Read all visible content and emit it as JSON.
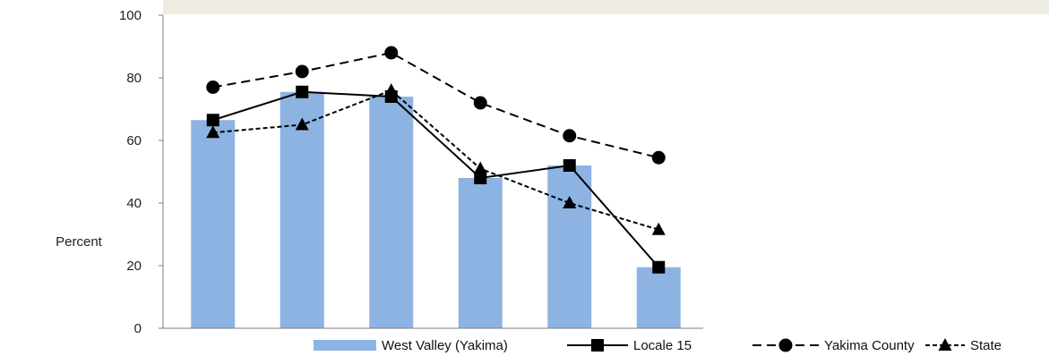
{
  "chart_data": {
    "type": "bar",
    "ylabel": "Percent",
    "ylim": [
      0,
      100
    ],
    "yticks": [
      0,
      20,
      40,
      60,
      80,
      100
    ],
    "grid": false,
    "legend_position": "bottom-right",
    "categories": [
      "",
      "",
      "",
      "",
      "",
      ""
    ],
    "series": [
      {
        "name": "West Valley (Yakima)",
        "kind": "bar",
        "color": "#8db3e2",
        "values": [
          66.5,
          75.5,
          74,
          48,
          52,
          19.5
        ]
      },
      {
        "name": "Locale 15",
        "kind": "line",
        "style": "solid",
        "marker": "square",
        "color": "#000000",
        "values": [
          66.5,
          75.5,
          74,
          48,
          52,
          19.5
        ]
      },
      {
        "name": "Yakima County",
        "kind": "line",
        "style": "dashed",
        "marker": "circle",
        "color": "#000000",
        "values": [
          77,
          82,
          88,
          72,
          61.5,
          54.5
        ]
      },
      {
        "name": "State",
        "kind": "line",
        "style": "dotted",
        "marker": "triangle",
        "color": "#000000",
        "values": [
          62.5,
          65,
          76,
          51,
          40,
          31.5
        ]
      }
    ]
  }
}
